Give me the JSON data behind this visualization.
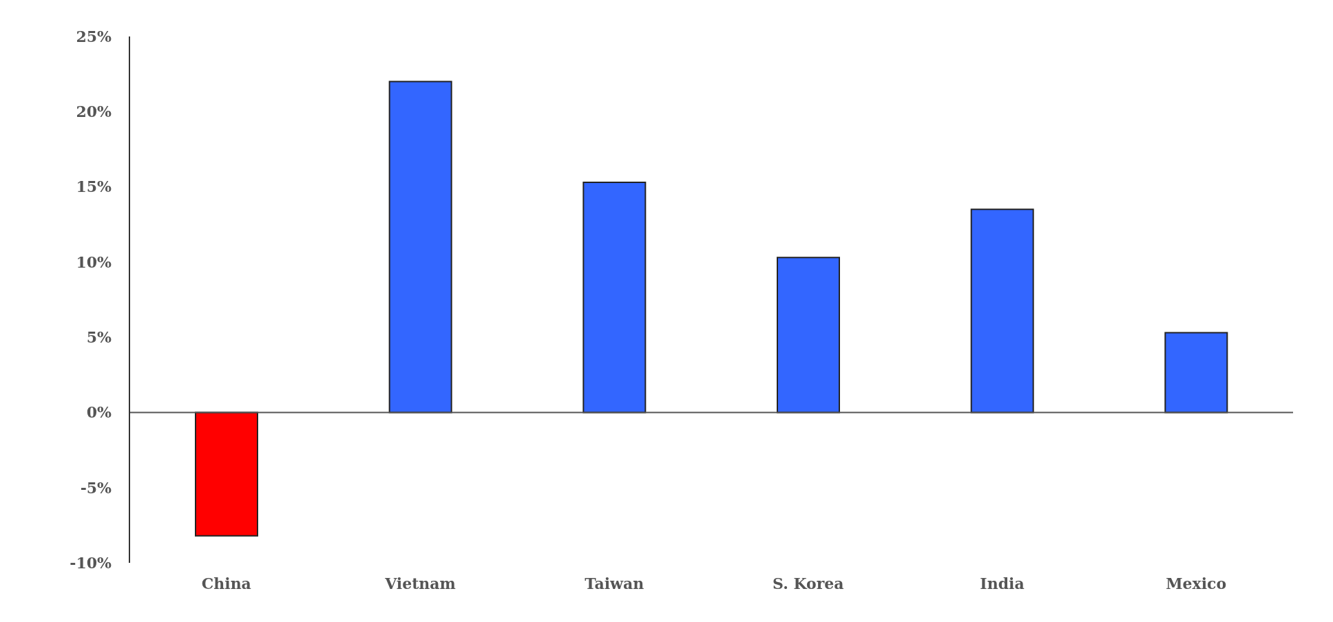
{
  "chart_data": {
    "type": "bar",
    "categories": [
      "China",
      "Vietnam",
      "Taiwan",
      "S. Korea",
      "India",
      "Mexico"
    ],
    "values": [
      -8.2,
      22.0,
      15.3,
      10.3,
      13.5,
      5.3
    ],
    "colors": [
      "#ff0000",
      "#3366ff",
      "#3366ff",
      "#3366ff",
      "#3366ff",
      "#3366ff"
    ],
    "ylim": [
      -10,
      25
    ],
    "yticks": [
      {
        "value": -10,
        "label": "-10%"
      },
      {
        "value": -5,
        "label": "-5%"
      },
      {
        "value": 0,
        "label": "0%"
      },
      {
        "value": 5,
        "label": "5%"
      },
      {
        "value": 10,
        "label": "10%"
      },
      {
        "value": 15,
        "label": "15%"
      },
      {
        "value": 20,
        "label": "20%"
      },
      {
        "value": 25,
        "label": "25%"
      }
    ],
    "ref_lines": [
      {
        "axis": "y",
        "value": 0,
        "color": "#555555"
      }
    ],
    "legend": false
  }
}
